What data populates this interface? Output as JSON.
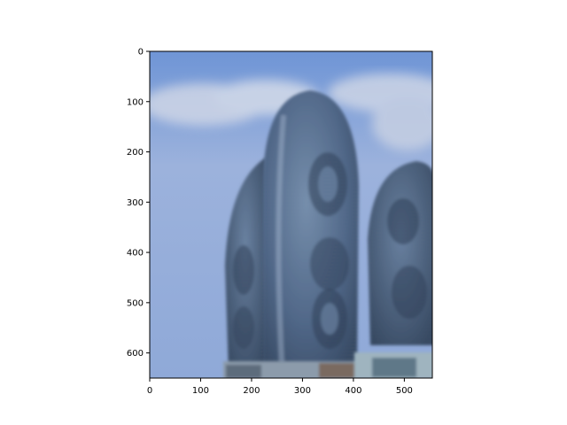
{
  "figure": {
    "image_alt": "Blurry photo of curved, egg-shaped skyscrapers with patterned facades against a blue sky",
    "colors": {
      "sky_top": "#6f95d6",
      "sky_bottom": "#9fb6e0",
      "cloud": "#cfd6e6",
      "tower_dark": "#3b4f6b",
      "tower_mid": "#5c7897",
      "tower_light": "#8fa6bf"
    }
  },
  "chart_data": {
    "type": "image",
    "title": "",
    "xlabel": "",
    "ylabel": "",
    "xlim": [
      0,
      555
    ],
    "ylim": [
      650,
      0
    ],
    "x_ticks": [
      0,
      100,
      200,
      300,
      400,
      500
    ],
    "y_ticks": [
      0,
      100,
      200,
      300,
      400,
      500,
      600
    ],
    "grid": false
  }
}
